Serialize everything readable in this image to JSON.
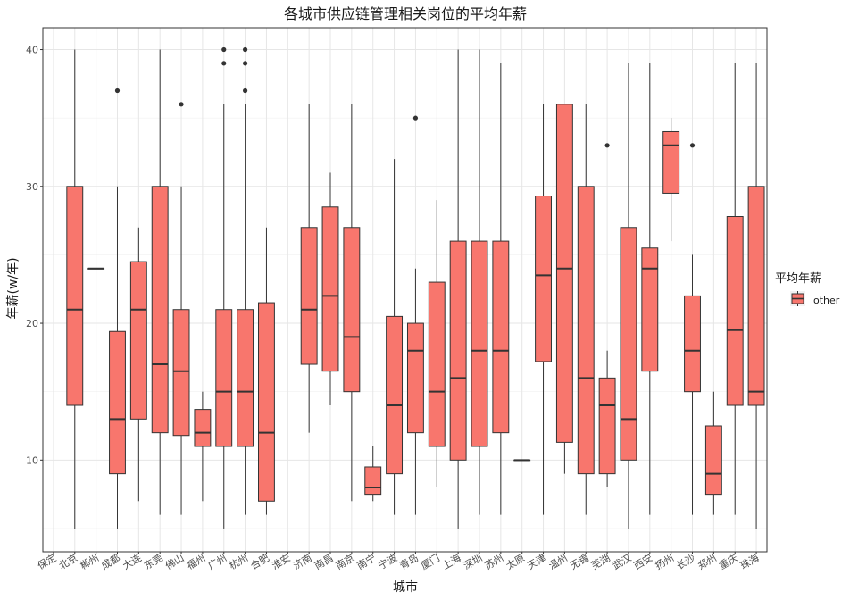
{
  "chart_data": {
    "type": "boxplot",
    "title": "各城市供应链管理相关岗位的平均年薪",
    "xlabel": "城市",
    "ylabel": "年薪(w/年)",
    "ylim": [
      3.3,
      41.6
    ],
    "yticks": [
      10,
      20,
      30,
      40
    ],
    "grid": true,
    "legend": {
      "title": "平均年薪",
      "position": "right",
      "entries": [
        "other"
      ]
    },
    "series": [
      {
        "name": "other",
        "color": "#F8766D",
        "boxes": [
          {
            "city": "保定"
          },
          {
            "city": "北京",
            "low": 5,
            "q1": 14,
            "median": 21,
            "q3": 30,
            "high": 40,
            "outliers": []
          },
          {
            "city": "郴州",
            "low": 24,
            "q1": 24,
            "median": 24,
            "q3": 24,
            "high": 24,
            "outliers": []
          },
          {
            "city": "成都",
            "low": 5,
            "q1": 9,
            "median": 13,
            "q3": 19.4,
            "high": 30,
            "outliers": [
              37
            ]
          },
          {
            "city": "大连",
            "low": 7,
            "q1": 13,
            "median": 21,
            "q3": 24.5,
            "high": 27,
            "outliers": []
          },
          {
            "city": "东莞",
            "low": 6,
            "q1": 12,
            "median": 17,
            "q3": 30,
            "high": 40,
            "outliers": []
          },
          {
            "city": "佛山",
            "low": 6,
            "q1": 11.8,
            "median": 16.5,
            "q3": 21,
            "high": 30,
            "outliers": [
              36
            ]
          },
          {
            "city": "福州",
            "low": 7,
            "q1": 11,
            "median": 12,
            "q3": 13.7,
            "high": 15,
            "outliers": []
          },
          {
            "city": "广州",
            "low": 5,
            "q1": 11,
            "median": 15,
            "q3": 21,
            "high": 36,
            "outliers": [
              39,
              40
            ]
          },
          {
            "city": "杭州",
            "low": 6,
            "q1": 11,
            "median": 15,
            "q3": 21,
            "high": 36,
            "outliers": [
              37,
              39,
              40
            ]
          },
          {
            "city": "合肥",
            "low": 6,
            "q1": 7,
            "median": 12,
            "q3": 21.5,
            "high": 27,
            "outliers": []
          },
          {
            "city": "淮安"
          },
          {
            "city": "济南",
            "low": 12,
            "q1": 17,
            "median": 21,
            "q3": 27,
            "high": 36,
            "outliers": []
          },
          {
            "city": "南昌",
            "low": 14,
            "q1": 16.5,
            "median": 22,
            "q3": 28.5,
            "high": 31,
            "outliers": []
          },
          {
            "city": "南京",
            "low": 7,
            "q1": 15,
            "median": 19,
            "q3": 27,
            "high": 36,
            "outliers": []
          },
          {
            "city": "南宁",
            "low": 7,
            "q1": 7.5,
            "median": 8,
            "q3": 9.5,
            "high": 11,
            "outliers": []
          },
          {
            "city": "宁波",
            "low": 6,
            "q1": 9,
            "median": 14,
            "q3": 20.5,
            "high": 32,
            "outliers": []
          },
          {
            "city": "青岛",
            "low": 6,
            "q1": 12,
            "median": 18,
            "q3": 20,
            "high": 24,
            "outliers": [
              35
            ]
          },
          {
            "city": "厦门",
            "low": 8,
            "q1": 11,
            "median": 15,
            "q3": 23,
            "high": 29,
            "outliers": []
          },
          {
            "city": "上海",
            "low": 5,
            "q1": 10,
            "median": 16,
            "q3": 26,
            "high": 40,
            "outliers": []
          },
          {
            "city": "深圳",
            "low": 6,
            "q1": 11,
            "median": 18,
            "q3": 26,
            "high": 40,
            "outliers": []
          },
          {
            "city": "苏州",
            "low": 6,
            "q1": 12,
            "median": 18,
            "q3": 26,
            "high": 39,
            "outliers": []
          },
          {
            "city": "太原",
            "low": 10,
            "q1": 10,
            "median": 10,
            "q3": 10,
            "high": 10,
            "outliers": []
          },
          {
            "city": "天津",
            "low": 6,
            "q1": 17.2,
            "median": 23.5,
            "q3": 29.3,
            "high": 36,
            "outliers": []
          },
          {
            "city": "温州",
            "low": 9,
            "q1": 11.3,
            "median": 24,
            "q3": 36,
            "high": 36,
            "outliers": []
          },
          {
            "city": "无锡",
            "low": 6,
            "q1": 9,
            "median": 16,
            "q3": 30,
            "high": 36,
            "outliers": []
          },
          {
            "city": "芜湖",
            "low": 8,
            "q1": 9,
            "median": 14,
            "q3": 16,
            "high": 18,
            "outliers": [
              33
            ]
          },
          {
            "city": "武汉",
            "low": 5,
            "q1": 10,
            "median": 13,
            "q3": 27,
            "high": 39,
            "outliers": []
          },
          {
            "city": "西安",
            "low": 6,
            "q1": 16.5,
            "median": 24,
            "q3": 25.5,
            "high": 39,
            "outliers": []
          },
          {
            "city": "扬州",
            "low": 26,
            "q1": 29.5,
            "median": 33,
            "q3": 34,
            "high": 35,
            "outliers": []
          },
          {
            "city": "长沙",
            "low": 6,
            "q1": 15,
            "median": 18,
            "q3": 22,
            "high": 25,
            "outliers": [
              33
            ]
          },
          {
            "city": "郑州",
            "low": 6,
            "q1": 7.5,
            "median": 9,
            "q3": 12.5,
            "high": 15,
            "outliers": []
          },
          {
            "city": "重庆",
            "low": 6,
            "q1": 14,
            "median": 19.5,
            "q3": 27.8,
            "high": 39,
            "outliers": []
          },
          {
            "city": "珠海",
            "low": 5,
            "q1": 14,
            "median": 15,
            "q3": 30,
            "high": 39,
            "outliers": []
          }
        ]
      }
    ]
  }
}
